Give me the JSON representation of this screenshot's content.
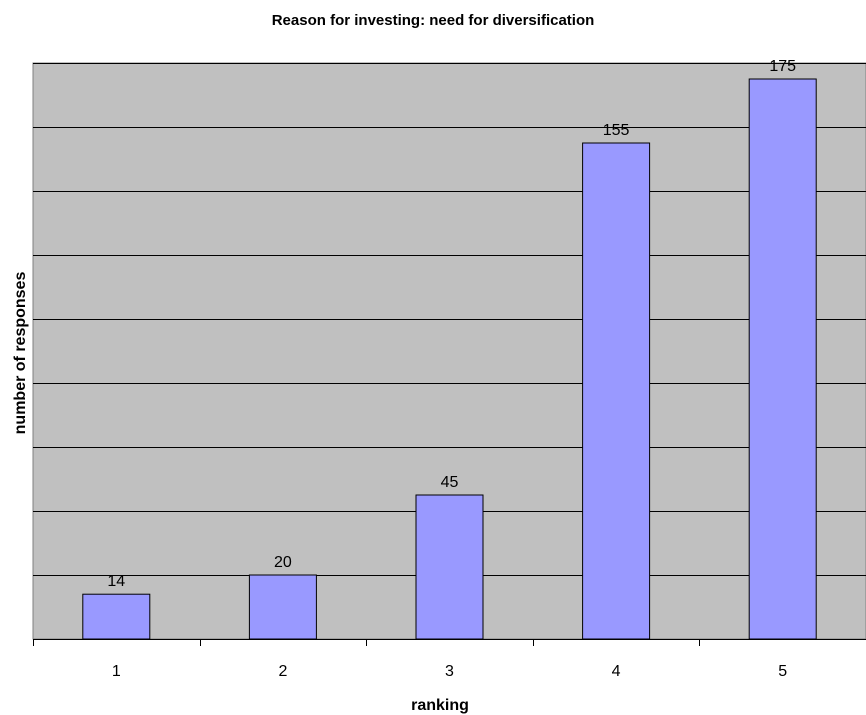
{
  "chart_data": {
    "type": "bar",
    "title": "Reason for investing: need for diversification",
    "xlabel": "ranking",
    "ylabel": "number of responses",
    "categories": [
      "1",
      "2",
      "3",
      "4",
      "5"
    ],
    "values": [
      14,
      20,
      45,
      155,
      175
    ],
    "ylim": [
      0,
      180
    ],
    "grid": true,
    "legend": "none",
    "colors": {
      "plot_background": "#c0c0c0",
      "bar_fill": "#9999ff",
      "bar_stroke": "#000000",
      "gridline": "#000000"
    }
  }
}
